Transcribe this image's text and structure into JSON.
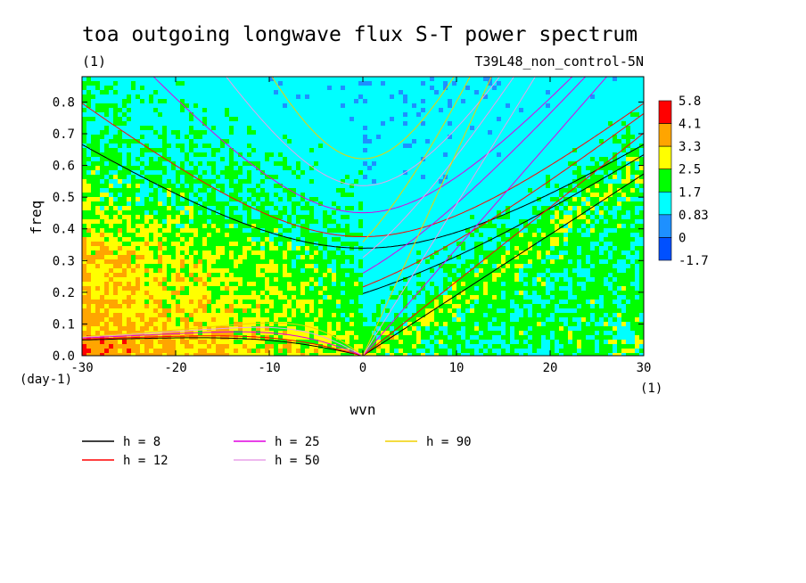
{
  "title": "toa outgoing longwave flux S-T power spectrum",
  "subtitle_left": "(1)",
  "subtitle_right": "T39L48_non_control-5N",
  "chart_data": {
    "type": "heatmap",
    "xlabel": "wvn",
    "ylabel": "freq",
    "x_unit": "(1)",
    "y_unit": "(day-1)",
    "xlim": [
      -30,
      30
    ],
    "ylim": [
      0,
      0.88
    ],
    "x_ticks": [
      "-30",
      "-20",
      "-10",
      "0",
      "10",
      "20",
      "30"
    ],
    "y_ticks": [
      "0.0",
      "0.1",
      "0.2",
      "0.3",
      "0.4",
      "0.5",
      "0.6",
      "0.7",
      "0.8"
    ],
    "colorbar": {
      "levels": [
        "5.8",
        "4.1",
        "3.3",
        "2.5",
        "1.7",
        "0.83",
        "0",
        "-1.7"
      ],
      "colors": [
        "#ff0000",
        "#ffa500",
        "#ffff00",
        "#00ff00",
        "#00ffff",
        "#1e90ff",
        "#0050ff"
      ]
    },
    "series": [
      {
        "name": "h =  8",
        "h": 8,
        "color": "#000000"
      },
      {
        "name": "h = 12",
        "h": 12,
        "color": "#ff0000"
      },
      {
        "name": "h = 25",
        "h": 25,
        "color": "#e000e0"
      },
      {
        "name": "h = 50",
        "h": 50,
        "color": "#e8a0e8"
      },
      {
        "name": "h = 90",
        "h": 90,
        "color": "#f0d000"
      }
    ]
  }
}
